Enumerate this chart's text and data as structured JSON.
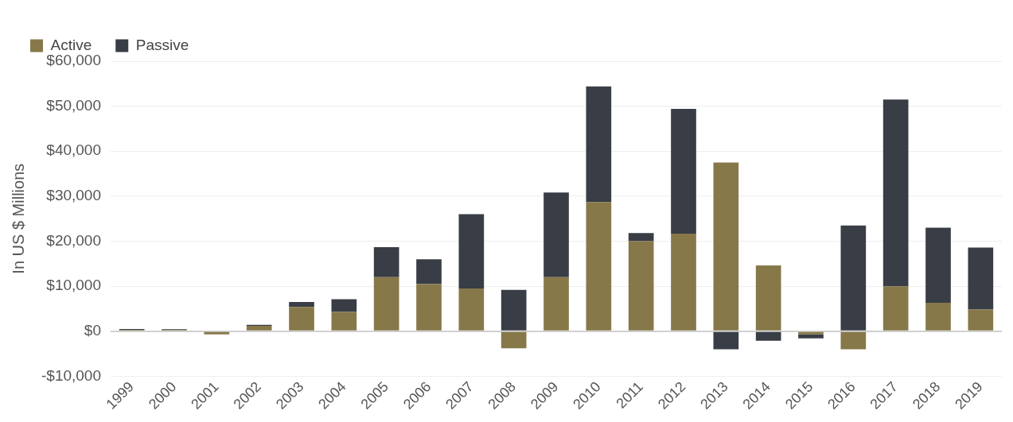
{
  "chart_data": {
    "type": "bar",
    "stacked": true,
    "ylabel": "In US $ Millions",
    "categories": [
      "1999",
      "2000",
      "2001",
      "2002",
      "2003",
      "2004",
      "2005",
      "2006",
      "2007",
      "2008",
      "2009",
      "2010",
      "2011",
      "2012",
      "2013",
      "2014",
      "2015",
      "2016",
      "2017",
      "2018",
      "2019"
    ],
    "series": [
      {
        "name": "Active",
        "color": "#87784a",
        "values": [
          300,
          300,
          -700,
          1200,
          5400,
          4300,
          12000,
          10500,
          9500,
          -3800,
          12000,
          28700,
          20000,
          21700,
          37500,
          14600,
          -700,
          -4000,
          10000,
          6300,
          4800
        ]
      },
      {
        "name": "Passive",
        "color": "#393d45",
        "values": [
          200,
          150,
          0,
          200,
          1100,
          2800,
          6700,
          5500,
          16500,
          9200,
          18800,
          25700,
          1800,
          27700,
          -4000,
          -2100,
          -900,
          23500,
          41500,
          16700,
          13800
        ]
      }
    ],
    "ylim": [
      -10000,
      60000
    ],
    "yticks": [
      {
        "value": -10000,
        "label": "-$10,000"
      },
      {
        "value": 0,
        "label": "$0"
      },
      {
        "value": 10000,
        "label": "$10,000"
      },
      {
        "value": 20000,
        "label": "$20,000"
      },
      {
        "value": 30000,
        "label": "$30,000"
      },
      {
        "value": 40000,
        "label": "$40,000"
      },
      {
        "value": 50000,
        "label": "$50,000"
      },
      {
        "value": 60000,
        "label": "$60,000"
      }
    ],
    "grid": "y",
    "legend": "top left"
  }
}
